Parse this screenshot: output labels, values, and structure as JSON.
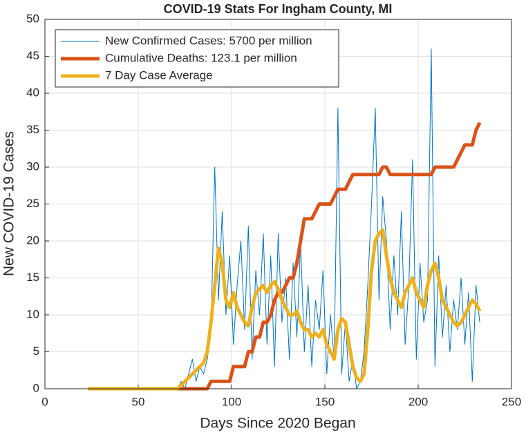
{
  "chart_data": {
    "type": "line",
    "title": "COVID-19 Stats For Ingham County, MI",
    "xlabel": "Days Since 2020 Began",
    "ylabel": "New COVID-19 Cases",
    "x": [
      23,
      25,
      27,
      29,
      31,
      33,
      35,
      37,
      39,
      41,
      43,
      45,
      47,
      49,
      51,
      53,
      55,
      57,
      59,
      61,
      63,
      65,
      67,
      69,
      71,
      73,
      75,
      77,
      79,
      81,
      83,
      85,
      87,
      89,
      91,
      93,
      95,
      97,
      99,
      101,
      103,
      105,
      107,
      109,
      111,
      113,
      115,
      117,
      119,
      121,
      123,
      125,
      127,
      129,
      131,
      133,
      135,
      137,
      139,
      141,
      143,
      145,
      147,
      149,
      151,
      153,
      155,
      157,
      159,
      161,
      163,
      165,
      167,
      169,
      171,
      173,
      175,
      177,
      179,
      181,
      183,
      185,
      187,
      189,
      191,
      193,
      195,
      197,
      199,
      201,
      203,
      205,
      207,
      209,
      211,
      213,
      215,
      217,
      219,
      221,
      223,
      225,
      227,
      229,
      231,
      233
    ],
    "series": [
      {
        "name": "New Confirmed Cases: 5700 per million",
        "color": "#0072bd",
        "width": 1,
        "values": [
          0,
          0,
          0,
          0,
          0,
          0,
          0,
          0,
          0,
          0,
          0,
          0,
          0,
          0,
          0,
          0,
          0,
          0,
          0,
          0,
          0,
          0,
          0,
          0,
          0,
          1,
          0,
          2,
          4,
          1,
          3,
          2,
          4,
          8,
          30,
          12,
          24,
          10,
          18,
          6,
          14,
          20,
          8,
          22,
          4,
          16,
          10,
          21,
          6,
          18,
          3,
          21,
          9,
          15,
          4,
          17,
          7,
          20,
          5,
          14,
          3,
          12,
          8,
          16,
          2,
          10,
          4,
          38,
          2,
          9,
          1,
          4,
          0,
          1,
          5,
          14,
          25,
          38,
          12,
          26,
          20,
          8,
          18,
          10,
          24,
          6,
          14,
          31,
          4,
          17,
          9,
          12,
          46,
          3,
          18,
          7,
          14,
          5,
          12,
          8,
          15,
          6,
          13,
          1,
          14,
          9
        ]
      },
      {
        "name": "Cumulative Deaths: 123.1 per million",
        "color": "#d95319",
        "width": 5,
        "values": [
          0,
          0,
          0,
          0,
          0,
          0,
          0,
          0,
          0,
          0,
          0,
          0,
          0,
          0,
          0,
          0,
          0,
          0,
          0,
          0,
          0,
          0,
          0,
          0,
          0,
          0,
          0,
          0,
          0,
          0,
          0,
          0,
          0,
          1,
          1,
          1,
          1,
          1,
          1,
          3,
          3,
          3,
          3,
          5,
          5,
          7,
          7,
          9,
          9,
          10,
          12,
          13,
          13,
          14,
          15,
          15,
          17,
          20,
          23,
          23,
          23,
          24,
          25,
          25,
          25,
          25,
          26,
          27,
          27,
          27,
          28,
          29,
          29,
          29,
          29,
          29,
          29,
          29,
          29,
          30,
          30,
          29,
          29,
          29,
          29,
          29,
          29,
          29,
          29,
          29,
          29,
          29,
          29,
          30,
          30,
          30,
          30,
          30,
          30,
          31,
          32,
          33,
          33,
          33,
          35,
          36
        ]
      },
      {
        "name": "7 Day Case Average",
        "color": "#edb120",
        "width": 5,
        "values": [
          0,
          0,
          0,
          0,
          0,
          0,
          0,
          0,
          0,
          0,
          0,
          0,
          0,
          0,
          0,
          0,
          0,
          0,
          0,
          0,
          0,
          0,
          0,
          0,
          0,
          0.5,
          1,
          1.5,
          2,
          2.5,
          3,
          3.5,
          5,
          9,
          14,
          19,
          17,
          12,
          11,
          13,
          11,
          10,
          9,
          8.5,
          11,
          13,
          13.5,
          14,
          13,
          14,
          14.5,
          13.5,
          12,
          11,
          10,
          10,
          10.5,
          9,
          8,
          8,
          7,
          7.5,
          7,
          8,
          6,
          5,
          4,
          8,
          9.5,
          9,
          6,
          3,
          1.5,
          1,
          2,
          8,
          16,
          20,
          21,
          21.5,
          18,
          15,
          13,
          12,
          11,
          13,
          14,
          15,
          13,
          12,
          11,
          14,
          16,
          17,
          15,
          12,
          11,
          10,
          9,
          8.5,
          9,
          10,
          11,
          12,
          11.5,
          10.5
        ]
      }
    ],
    "xlim": [
      0,
      250
    ],
    "xticks": [
      0,
      50,
      100,
      150,
      200,
      250
    ],
    "ylim": [
      0,
      50
    ],
    "yticks": [
      0,
      5,
      10,
      15,
      20,
      25,
      30,
      35,
      40,
      45,
      50
    ],
    "grid": true,
    "legend": "upper left"
  }
}
